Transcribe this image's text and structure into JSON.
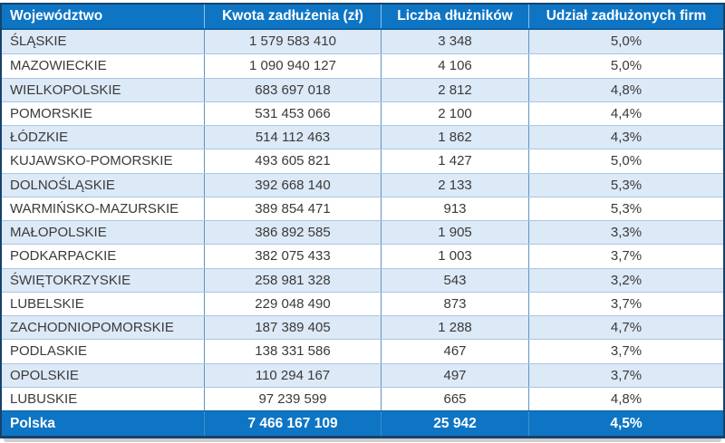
{
  "chart_data": {
    "type": "table",
    "columns": [
      "Województwo",
      "Kwota zadłużenia (zł)",
      "Liczba dłużników",
      "Udział zadłużonych firm"
    ],
    "rows": [
      [
        "ŚLĄSKIE",
        "1 579 583 410",
        "3 348",
        "5,0%"
      ],
      [
        "MAZOWIECKIE",
        "1 090 940 127",
        "4 106",
        "5,0%"
      ],
      [
        "WIELKOPOLSKIE",
        "683 697 018",
        "2 812",
        "4,8%"
      ],
      [
        "POMORSKIE",
        "531 453 066",
        "2 100",
        "4,4%"
      ],
      [
        "ŁÓDZKIE",
        "514 112 463",
        "1 862",
        "4,3%"
      ],
      [
        "KUJAWSKO-POMORSKIE",
        "493 605 821",
        "1 427",
        "5,0%"
      ],
      [
        "DOLNOŚLĄSKIE",
        "392 668 140",
        "2 133",
        "5,3%"
      ],
      [
        "WARMIŃSKO-MAZURSKIE",
        "389 854 471",
        "913",
        "5,3%"
      ],
      [
        "MAŁOPOLSKIE",
        "386 892 585",
        "1 905",
        "3,3%"
      ],
      [
        "PODKARPACKIE",
        "382 075 433",
        "1 003",
        "3,7%"
      ],
      [
        "ŚWIĘTOKRZYSKIE",
        "258 981 328",
        "543",
        "3,2%"
      ],
      [
        "LUBELSKIE",
        "229 048 490",
        "873",
        "3,7%"
      ],
      [
        "ZACHODNIOPOMORSKIE",
        "187 389 405",
        "1 288",
        "4,7%"
      ],
      [
        "PODLASKIE",
        "138 331 586",
        "467",
        "3,7%"
      ],
      [
        "OPOLSKIE",
        "110 294 167",
        "497",
        "3,7%"
      ],
      [
        "LUBUSKIE",
        "97 239 599",
        "665",
        "4,8%"
      ]
    ],
    "total_row": [
      "Polska",
      "7 466 167 109",
      "25 942",
      "4,5%"
    ]
  },
  "colors": {
    "header_blue": "#0e75c4",
    "stripe_blue": "#dce9f6",
    "border_dark": "#17426b",
    "header_underline": "#0b5ea2",
    "row_line": "#a9c7e3",
    "col_line": "#5e94c5",
    "footer_line": "#3c8ed0",
    "body_text": "#3a3a3a",
    "shadow_gray": "#bdbdbd"
  }
}
